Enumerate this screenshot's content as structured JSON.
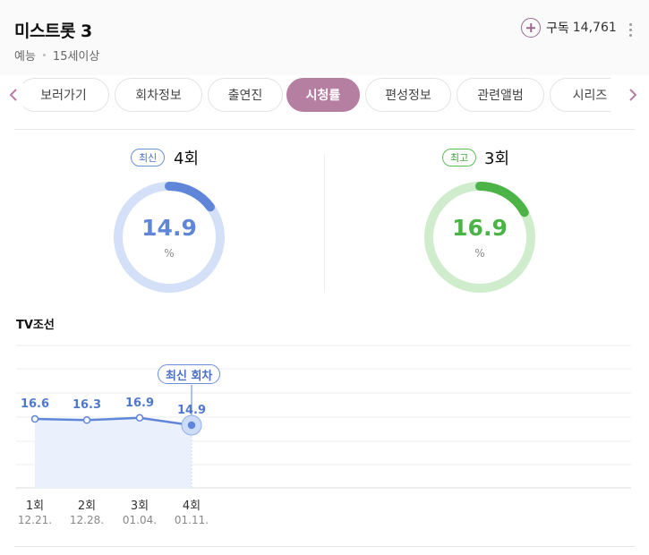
{
  "program": {
    "title": "미스트롯 3",
    "genre": "예능",
    "rating_age": "15세이상",
    "subscribe_label": "구독",
    "subscribe_count": "14,761"
  },
  "tabs": [
    {
      "label": "보러가기",
      "active": false
    },
    {
      "label": "회차정보",
      "active": false
    },
    {
      "label": "출연진",
      "active": false
    },
    {
      "label": "시청률",
      "active": true
    },
    {
      "label": "편성정보",
      "active": false
    },
    {
      "label": "관련앨범",
      "active": false
    },
    {
      "label": "시리즈",
      "active": false
    }
  ],
  "summary": {
    "latest": {
      "badge": "최신",
      "episode": "4회",
      "value": "14.9",
      "unit": "%",
      "percent": 14.9,
      "color": "#5f86d9",
      "track": "#d4e0f7"
    },
    "best": {
      "badge": "최고",
      "episode": "3회",
      "value": "16.9",
      "unit": "%",
      "percent": 16.9,
      "color": "#4cb347",
      "track": "#cfeccd"
    }
  },
  "channel": "TV조선",
  "tooltip": "최신 회차",
  "colors": {
    "accent": "#b57fa2",
    "line": "#5f86d9",
    "area": "#eaf1fd"
  },
  "chart_data": {
    "type": "line",
    "categories": [
      "1회",
      "2회",
      "3회",
      "4회"
    ],
    "dates": [
      "12.21.",
      "12.28.",
      "01.04.",
      "01.11."
    ],
    "values": [
      16.6,
      16.3,
      16.9,
      14.9
    ],
    "value_labels": [
      "16.6",
      "16.3",
      "16.9",
      "14.9"
    ],
    "highlight_index": 3,
    "grid": true
  }
}
